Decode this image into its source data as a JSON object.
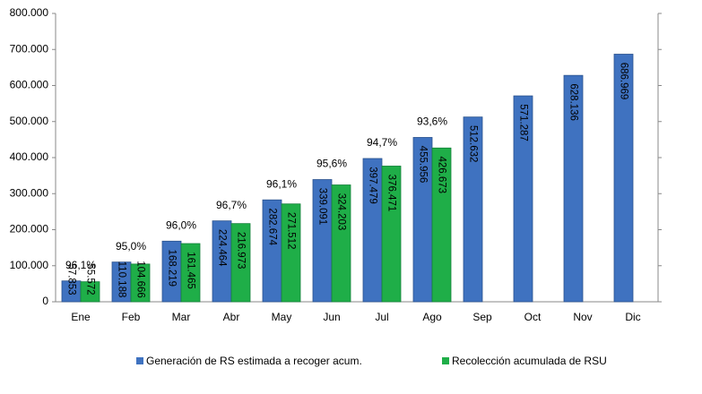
{
  "chart_data": {
    "type": "bar",
    "categories": [
      "Ene",
      "Feb",
      "Mar",
      "Abr",
      "May",
      "Jun",
      "Jul",
      "Ago",
      "Sep",
      "Oct",
      "Nov",
      "Dic"
    ],
    "series": [
      {
        "name": "Generación de RS estimada a recoger acum.",
        "color": "#3f72c0",
        "values": [
          57853,
          110188,
          168219,
          224464,
          282674,
          339091,
          397479,
          455956,
          512632,
          571287,
          628136,
          686969
        ],
        "value_labels": [
          "57.853",
          "110.188",
          "168.219",
          "224.464",
          "282.674",
          "339.091",
          "397.479",
          "455.956",
          "512.632",
          "571.287",
          "628.136",
          "686.969"
        ]
      },
      {
        "name": "Recolección acumulada de RSU",
        "color": "#1fae48",
        "values": [
          55572,
          104666,
          161465,
          216973,
          271512,
          324203,
          376471,
          426673,
          null,
          null,
          null,
          null
        ],
        "value_labels": [
          "55.572",
          "104.666",
          "161.465",
          "216.973",
          "271.512",
          "324.203",
          "376.471",
          "426.673",
          null,
          null,
          null,
          null
        ]
      }
    ],
    "annotations": [
      "96,1%",
      "95,0%",
      "96,0%",
      "96,7%",
      "96,1%",
      "95,6%",
      "94,7%",
      "93,6%"
    ],
    "ylim": [
      0,
      800000
    ],
    "yticks": [
      0,
      {
        "value": 100000,
        "label": "100.000"
      },
      {
        "value": 200000,
        "label": "200.000"
      },
      {
        "value": 300000,
        "label": "300.000"
      },
      {
        "value": 400000,
        "label": "400.000"
      },
      {
        "value": 500000,
        "label": "500.000"
      },
      {
        "value": 600000,
        "label": "600.000"
      },
      {
        "value": 700000,
        "label": "700.000"
      },
      {
        "value": 800000,
        "label": "800.000"
      }
    ],
    "legend": "bottom"
  }
}
